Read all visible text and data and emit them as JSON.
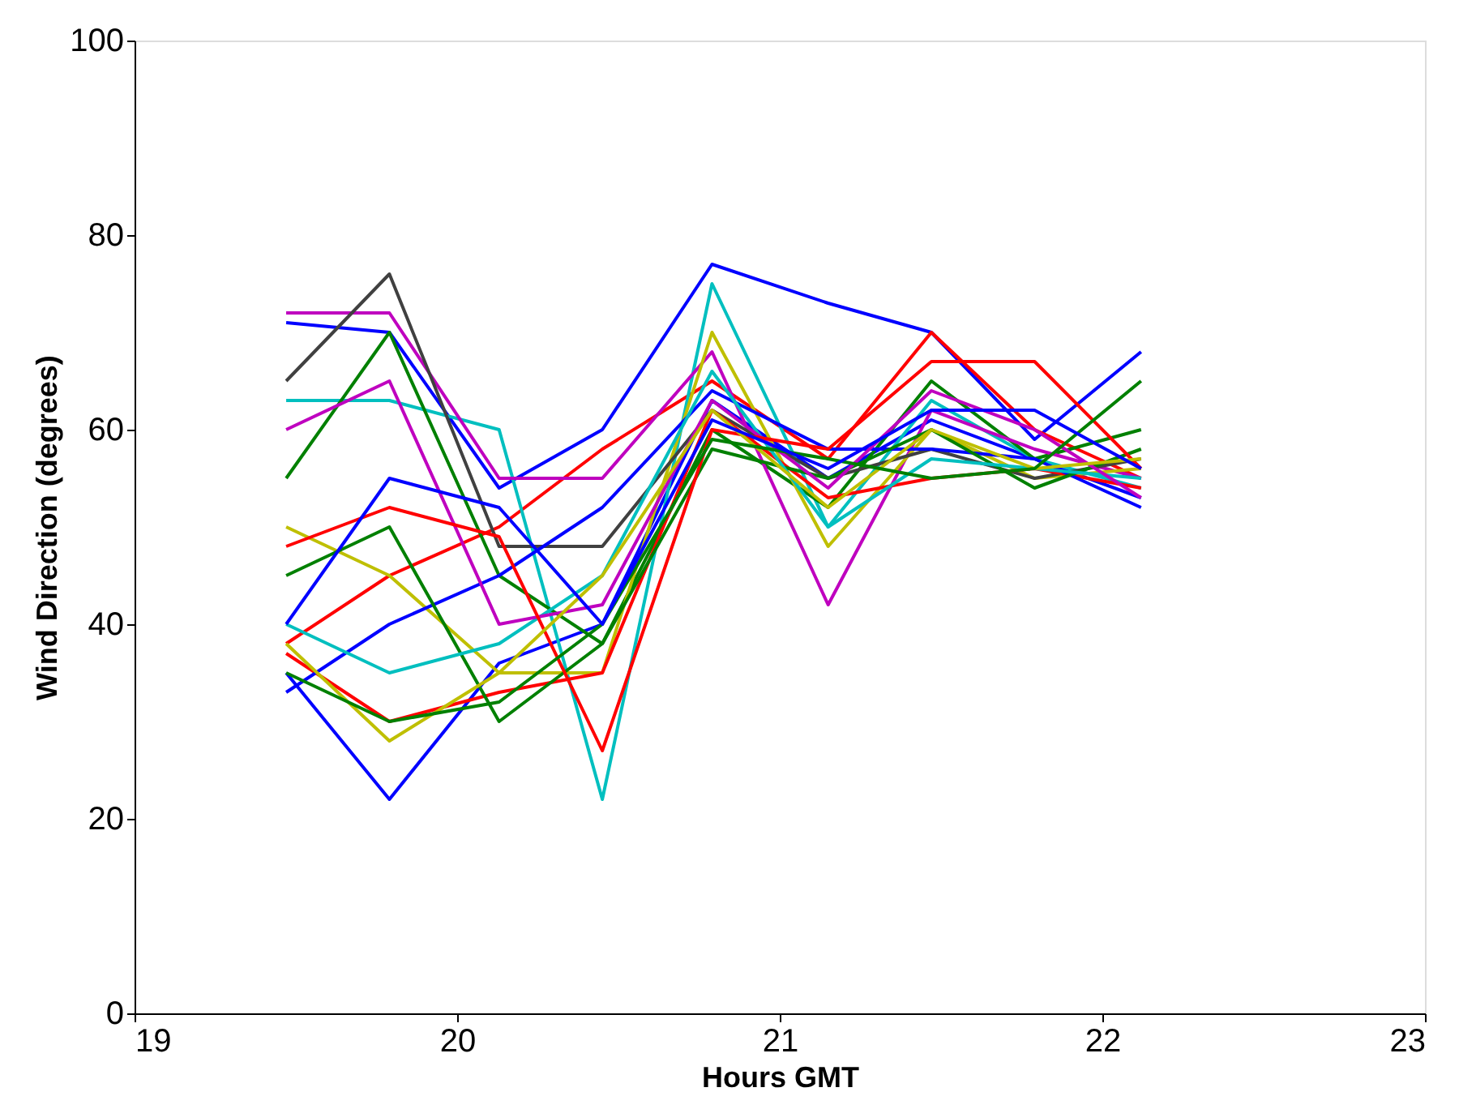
{
  "chart_data": {
    "type": "line",
    "xlabel": "Hours GMT",
    "ylabel": "Wind Direction (degrees)",
    "x": [
      19.47,
      19.79,
      20.13,
      20.45,
      20.79,
      21.15,
      21.47,
      21.79,
      22.12
    ],
    "xlim": [
      19,
      23
    ],
    "xticks": [
      19,
      20,
      21,
      22,
      23
    ],
    "ylim": [
      0,
      100
    ],
    "yticks": [
      0,
      20,
      40,
      60,
      80,
      100
    ],
    "grid": false,
    "legend": false,
    "marker": "none",
    "line_style": "solid",
    "series": [
      {
        "color": "#0000ff",
        "values": [
          71,
          70,
          54,
          60,
          77,
          73,
          70,
          59,
          68
        ]
      },
      {
        "color": "#0000ff",
        "values": [
          35,
          22,
          36,
          40,
          63,
          55,
          61,
          57,
          53
        ]
      },
      {
        "color": "#ff0000",
        "values": [
          38,
          45,
          50,
          58,
          65,
          57,
          70,
          60,
          55
        ]
      },
      {
        "color": "#00bfbf",
        "values": [
          63,
          63,
          60,
          22,
          75,
          50,
          63,
          57,
          54
        ]
      },
      {
        "color": "#008000",
        "values": [
          55,
          70,
          45,
          38,
          60,
          52,
          65,
          57,
          60
        ]
      },
      {
        "color": "#bf00bf",
        "values": [
          72,
          72,
          55,
          55,
          68,
          42,
          62,
          58,
          55
        ]
      },
      {
        "color": "#bfbf00",
        "values": [
          50,
          45,
          35,
          35,
          70,
          48,
          60,
          55,
          56
        ]
      },
      {
        "color": "#404040",
        "values": [
          65,
          76,
          48,
          48,
          62,
          55,
          58,
          55,
          57
        ]
      },
      {
        "color": "#ff0000",
        "values": [
          37,
          30,
          33,
          35,
          62,
          53,
          55,
          56,
          54
        ]
      },
      {
        "color": "#0000ff",
        "values": [
          33,
          40,
          45,
          52,
          64,
          58,
          58,
          57,
          52
        ]
      },
      {
        "color": "#008000",
        "values": [
          45,
          50,
          30,
          38,
          58,
          55,
          60,
          54,
          58
        ]
      },
      {
        "color": "#00bfbf",
        "values": [
          40,
          35,
          38,
          45,
          66,
          50,
          57,
          56,
          55
        ]
      },
      {
        "color": "#bf00bf",
        "values": [
          60,
          65,
          40,
          42,
          63,
          54,
          64,
          60,
          53
        ]
      },
      {
        "color": "#ff0000",
        "values": [
          48,
          52,
          49,
          27,
          60,
          58,
          67,
          67,
          56
        ]
      },
      {
        "color": "#bfbf00",
        "values": [
          38,
          28,
          35,
          45,
          62,
          52,
          60,
          56,
          57
        ]
      },
      {
        "color": "#008000",
        "values": [
          35,
          30,
          32,
          40,
          59,
          57,
          55,
          56,
          65
        ]
      },
      {
        "color": "#0000ff",
        "values": [
          40,
          55,
          52,
          40,
          61,
          56,
          62,
          62,
          56
        ]
      }
    ]
  }
}
